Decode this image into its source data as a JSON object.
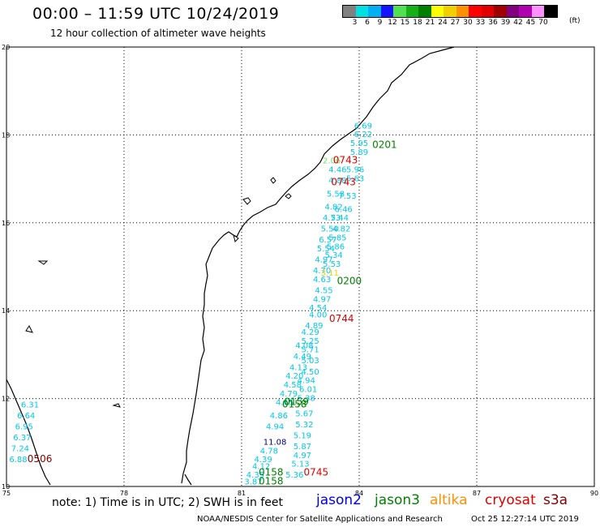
{
  "header": {
    "title": "00:00 – 11:59 UTC 10/24/2019",
    "subtitle": "12 hour collection of altimeter wave heights"
  },
  "legend": {
    "unit": "(ft)",
    "colors": [
      "#808080",
      "#00e0e0",
      "#00b0f0",
      "#1414ff",
      "#50e050",
      "#18b018",
      "#008000",
      "#ffff00",
      "#f0d000",
      "#ff9000",
      "#ff0000",
      "#e00000",
      "#a00000",
      "#800080",
      "#b000b0",
      "#ff90ff",
      "#000000"
    ],
    "labels": [
      "3",
      "6",
      "9",
      "12",
      "15",
      "18",
      "21",
      "24",
      "27",
      "30",
      "33",
      "36",
      "39",
      "42",
      "45",
      "70"
    ]
  },
  "axes": {
    "x_ticks": [
      "75",
      "78",
      "81",
      "84",
      "87",
      "90"
    ],
    "y_ticks": [
      "20",
      "18",
      "16",
      "14",
      "12",
      "10"
    ]
  },
  "chart_data": {
    "type": "scatter",
    "x_range": [
      75,
      90
    ],
    "y_range": [
      10,
      20
    ],
    "grid": "dotted",
    "observations": [
      {
        "text": "6.69",
        "lon": 84.1,
        "lat": 18.15,
        "color": "#00c8e8"
      },
      {
        "text": "6.22",
        "lon": 84.1,
        "lat": 17.95,
        "color": "#00c8e8"
      },
      {
        "text": "5.95",
        "lon": 84.0,
        "lat": 17.75,
        "color": "#00c8e8"
      },
      {
        "text": "5.89",
        "lon": 84.0,
        "lat": 17.55,
        "color": "#00c8e8"
      },
      {
        "text": "2.06",
        "lon": 83.3,
        "lat": 17.35,
        "color": "#70e070"
      },
      {
        "text": "4.46",
        "lon": 83.45,
        "lat": 17.15,
        "color": "#00c8e8"
      },
      {
        "text": "5.96",
        "lon": 83.9,
        "lat": 17.15,
        "color": "#00c8e8"
      },
      {
        "text": "4.88",
        "lon": 83.45,
        "lat": 16.9,
        "color": "#00c8e8"
      },
      {
        "text": "5.63",
        "lon": 83.9,
        "lat": 16.95,
        "color": "#00c8e8"
      },
      {
        "text": "5.58",
        "lon": 83.4,
        "lat": 16.6,
        "color": "#00c8e8"
      },
      {
        "text": "7.53",
        "lon": 83.7,
        "lat": 16.55,
        "color": "#00c8e8"
      },
      {
        "text": "4.82",
        "lon": 83.35,
        "lat": 16.3,
        "color": "#00c8e8"
      },
      {
        "text": "6.46",
        "lon": 83.6,
        "lat": 16.25,
        "color": "#00c8e8"
      },
      {
        "text": "4.73",
        "lon": 83.3,
        "lat": 16.05,
        "color": "#00c8e8"
      },
      {
        "text": "5.44",
        "lon": 83.5,
        "lat": 16.05,
        "color": "#00c8e8"
      },
      {
        "text": "5.50",
        "lon": 83.25,
        "lat": 15.8,
        "color": "#00c8e8"
      },
      {
        "text": "4.82",
        "lon": 83.55,
        "lat": 15.8,
        "color": "#00c8e8"
      },
      {
        "text": "6.57",
        "lon": 83.2,
        "lat": 15.55,
        "color": "#00c8e8"
      },
      {
        "text": "5.85",
        "lon": 83.45,
        "lat": 15.6,
        "color": "#00c8e8"
      },
      {
        "text": "5.54",
        "lon": 83.15,
        "lat": 15.35,
        "color": "#00c8e8"
      },
      {
        "text": "5.86",
        "lon": 83.4,
        "lat": 15.4,
        "color": "#00c8e8"
      },
      {
        "text": "5.34",
        "lon": 83.35,
        "lat": 15.2,
        "color": "#00c8e8"
      },
      {
        "text": "4.97",
        "lon": 83.1,
        "lat": 15.1,
        "color": "#00c8e8"
      },
      {
        "text": "5.53",
        "lon": 83.3,
        "lat": 15.0,
        "color": "#00c8e8"
      },
      {
        "text": "4.70",
        "lon": 83.05,
        "lat": 14.85,
        "color": "#00c8e8"
      },
      {
        "text": "3.11",
        "lon": 83.25,
        "lat": 14.8,
        "color": "#f0d000"
      },
      {
        "text": "4.63",
        "lon": 83.05,
        "lat": 14.65,
        "color": "#00c8e8"
      },
      {
        "text": "4.55",
        "lon": 83.1,
        "lat": 14.4,
        "color": "#00c8e8"
      },
      {
        "text": "4.97",
        "lon": 83.05,
        "lat": 14.2,
        "color": "#00c8e8"
      },
      {
        "text": "4.54",
        "lon": 82.95,
        "lat": 14.0,
        "color": "#00c8e8"
      },
      {
        "text": "4.00",
        "lon": 82.95,
        "lat": 13.85,
        "color": "#00c8e8"
      },
      {
        "text": "4.89",
        "lon": 82.85,
        "lat": 13.6,
        "color": "#00c8e8"
      },
      {
        "text": "4.29",
        "lon": 82.75,
        "lat": 13.45,
        "color": "#00c8e8"
      },
      {
        "text": "5.25",
        "lon": 82.75,
        "lat": 13.25,
        "color": "#00c8e8"
      },
      {
        "text": "4.08",
        "lon": 82.6,
        "lat": 13.15,
        "color": "#00c8e8"
      },
      {
        "text": "5.71",
        "lon": 82.75,
        "lat": 13.05,
        "color": "#00c8e8"
      },
      {
        "text": "4.49",
        "lon": 82.55,
        "lat": 12.9,
        "color": "#00c8e8"
      },
      {
        "text": "5.03",
        "lon": 82.75,
        "lat": 12.8,
        "color": "#00c8e8"
      },
      {
        "text": "4.13",
        "lon": 82.45,
        "lat": 12.65,
        "color": "#00c8e8"
      },
      {
        "text": "4.50",
        "lon": 82.75,
        "lat": 12.55,
        "color": "#00c8e8"
      },
      {
        "text": "4.20",
        "lon": 82.35,
        "lat": 12.45,
        "color": "#00c8e8"
      },
      {
        "text": "4.94",
        "lon": 82.65,
        "lat": 12.35,
        "color": "#00c8e8"
      },
      {
        "text": "4.58",
        "lon": 82.3,
        "lat": 12.25,
        "color": "#00c8e8"
      },
      {
        "text": "6.01",
        "lon": 82.7,
        "lat": 12.15,
        "color": "#00c8e8"
      },
      {
        "text": "4.79",
        "lon": 82.2,
        "lat": 12.05,
        "color": "#00c8e8"
      },
      {
        "text": "5.38",
        "lon": 82.65,
        "lat": 11.95,
        "color": "#00c8e8"
      },
      {
        "text": "4.65",
        "lon": 82.1,
        "lat": 11.85,
        "color": "#00c8e8"
      },
      {
        "text": "5.67",
        "lon": 82.6,
        "lat": 11.6,
        "color": "#00c8e8"
      },
      {
        "text": "4.86",
        "lon": 81.95,
        "lat": 11.55,
        "color": "#00c8e8"
      },
      {
        "text": "5.32",
        "lon": 82.6,
        "lat": 11.35,
        "color": "#00c8e8"
      },
      {
        "text": "4.94",
        "lon": 81.85,
        "lat": 11.3,
        "color": "#00c8e8"
      },
      {
        "text": "5.19",
        "lon": 82.55,
        "lat": 11.1,
        "color": "#00c8e8"
      },
      {
        "text": "11.08",
        "lon": 81.85,
        "lat": 10.95,
        "color": "#000080"
      },
      {
        "text": "5.87",
        "lon": 82.55,
        "lat": 10.85,
        "color": "#00c8e8"
      },
      {
        "text": "4.78",
        "lon": 81.7,
        "lat": 10.75,
        "color": "#00c8e8"
      },
      {
        "text": "4.97",
        "lon": 82.55,
        "lat": 10.65,
        "color": "#00c8e8"
      },
      {
        "text": "4.39",
        "lon": 81.55,
        "lat": 10.55,
        "color": "#00c8e8"
      },
      {
        "text": "4.12",
        "lon": 81.5,
        "lat": 10.4,
        "color": "#00c8e8"
      },
      {
        "text": "5.13",
        "lon": 82.5,
        "lat": 10.45,
        "color": "#00c8e8"
      },
      {
        "text": "4.35",
        "lon": 81.35,
        "lat": 10.2,
        "color": "#00c8e8"
      },
      {
        "text": "5.36",
        "lon": 82.35,
        "lat": 10.2,
        "color": "#00c8e8"
      },
      {
        "text": "3.87",
        "lon": 81.3,
        "lat": 10.05,
        "color": "#00c8e8"
      },
      {
        "text": "6.31",
        "lon": 75.6,
        "lat": 11.8,
        "color": "#00c8e8"
      },
      {
        "text": "6.64",
        "lon": 75.5,
        "lat": 11.55,
        "color": "#00c8e8"
      },
      {
        "text": "6.95",
        "lon": 75.45,
        "lat": 11.3,
        "color": "#00c8e8"
      },
      {
        "text": "6.37",
        "lon": 75.4,
        "lat": 11.05,
        "color": "#00c8e8"
      },
      {
        "text": "7.24",
        "lon": 75.35,
        "lat": 10.8,
        "color": "#00c8e8"
      },
      {
        "text": "6.88",
        "lon": 75.3,
        "lat": 10.55,
        "color": "#00c8e8"
      }
    ],
    "pass_times": [
      {
        "text": "0201",
        "lon": 84.65,
        "lat": 17.7,
        "color": "#008000"
      },
      {
        "text": "0743",
        "lon": 83.65,
        "lat": 17.35,
        "color": "#e00000"
      },
      {
        "text": "0743",
        "lon": 83.6,
        "lat": 16.85,
        "color": "#e00000"
      },
      {
        "text": "0200",
        "lon": 83.75,
        "lat": 14.6,
        "color": "#008000"
      },
      {
        "text": "0744",
        "lon": 83.55,
        "lat": 13.75,
        "color": "#e00000"
      },
      {
        "text": "0159",
        "lon": 82.4,
        "lat": 11.85,
        "color": "#008000"
      },
      {
        "text": "0158",
        "lon": 82.35,
        "lat": 11.8,
        "color": "#008000"
      },
      {
        "text": "0745",
        "lon": 82.9,
        "lat": 10.25,
        "color": "#e00000"
      },
      {
        "text": "0158",
        "lon": 81.75,
        "lat": 10.25,
        "color": "#008000"
      },
      {
        "text": "0158",
        "lon": 81.75,
        "lat": 10.05,
        "color": "#008000"
      },
      {
        "text": "0506",
        "lon": 75.85,
        "lat": 10.55,
        "color": "#800000"
      }
    ]
  },
  "note": "note: 1) Time is in UTC; 2) SWH is in feet",
  "satellites": [
    {
      "name": "jason2",
      "color": "#0000e0"
    },
    {
      "name": "jason3",
      "color": "#008000"
    },
    {
      "name": "altika",
      "color": "#ff9000"
    },
    {
      "name": "cryosat",
      "color": "#e00000"
    },
    {
      "name": "s3a",
      "color": "#800000"
    }
  ],
  "footer": {
    "credit": "NOAA/NESDIS Center for Satellite Applications and Research",
    "timestamp": "Oct 25 12:27:14 UTC 2019"
  }
}
